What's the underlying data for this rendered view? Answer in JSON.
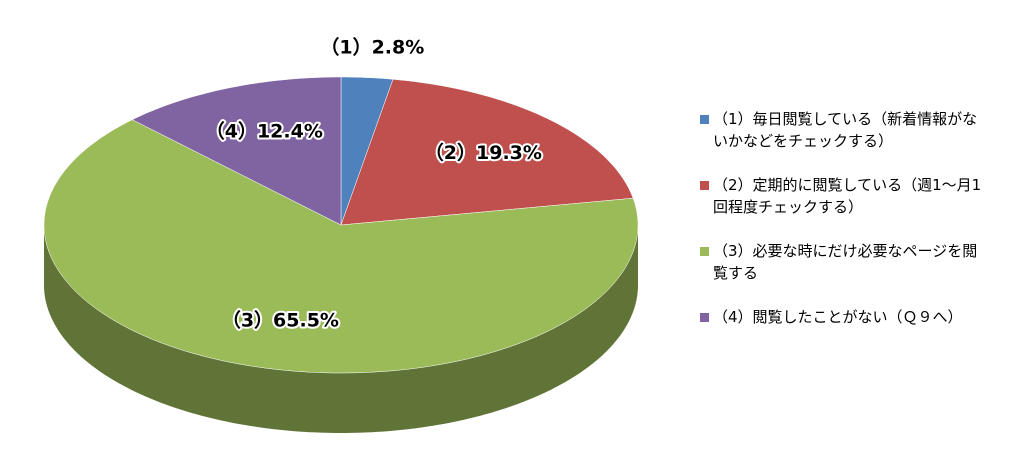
{
  "chart_data": {
    "type": "pie",
    "categories": [
      "（1）毎日閲覧している（新着情報がないかなどをチェックする）",
      "（2）定期的に閲覧している（週1～月1回程度チェックする）",
      "（3）必要な時にだけ必要なページを閲覧する",
      "（4）閲覧したことがない（Ｑ９へ）"
    ],
    "values": [
      2.8,
      19.3,
      65.5,
      12.4
    ],
    "value_labels": [
      "（1）2.8%",
      "（2）19.3%",
      "（3）65.5%",
      "（4）12.4%"
    ],
    "colors": [
      "#4f81bd",
      "#c0504d",
      "#9bbb59",
      "#8064a2"
    ],
    "legend_position": "right"
  }
}
